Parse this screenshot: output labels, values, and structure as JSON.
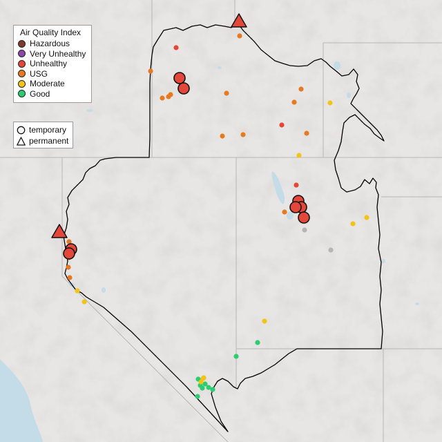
{
  "legend": {
    "title": "Air Quality Index",
    "categories": [
      {
        "label": "Hazardous",
        "color": "#7e3a2e"
      },
      {
        "label": "Very Unhealthy",
        "color": "#8e44ad"
      },
      {
        "label": "Unhealthy",
        "color": "#e2473a"
      },
      {
        "label": "USG",
        "color": "#e57a22"
      },
      {
        "label": "Moderate",
        "color": "#f0c419"
      },
      {
        "label": "Good",
        "color": "#2ecc71"
      }
    ]
  },
  "monitor_types": {
    "temporary_label": "temporary",
    "permanent_label": "permanent"
  },
  "colors": {
    "background": "#e6e4e2",
    "boundary": "#000000",
    "water": "#c4dbe8",
    "no_data": "#b5b5b5"
  }
}
